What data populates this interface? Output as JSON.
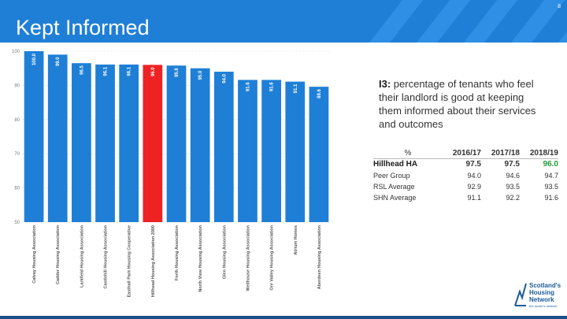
{
  "page": {
    "title": "Kept Informed",
    "page_number": "8"
  },
  "indicator": {
    "code": "I3:",
    "text": "percentage of tenants who feel their landlord is good at keeping them informed about their services and outcomes"
  },
  "chart_data": {
    "type": "bar",
    "categories": [
      "Calvay Housing Association",
      "Cadder Housing Association",
      "Larkfield Housing Association",
      "Castlehill Housing Association",
      "Easthall Park Housing Cooperative",
      "Hillhead Housing Association 2000",
      "Forth Housing Association",
      "North View Housing Association",
      "Glen Housing Association",
      "Wellhouse Housing Association",
      "Ore Valley Housing Association",
      "Atrium Homes",
      "Aberdeen Housing Association"
    ],
    "values": [
      100.0,
      99.0,
      96.5,
      96.1,
      96.1,
      96.0,
      95.8,
      95.0,
      94.0,
      91.6,
      91.6,
      91.1,
      89.6
    ],
    "data_labels": [
      "100.0",
      "99.0",
      "96.5",
      "96.1",
      "96.1",
      "96.0",
      "95.8",
      "95.0",
      "94.0",
      "91.6",
      "91.6",
      "91.1",
      "89.6"
    ],
    "highlight_index": 5,
    "ylim": [
      50,
      100
    ],
    "yticks": [
      "50",
      "60",
      "70",
      "80",
      "90",
      "100"
    ],
    "grid": true,
    "colors": {
      "bar": "#1f7fd6",
      "highlight": "#ee2222"
    }
  },
  "table": {
    "corner": "%",
    "headers": [
      "2016/17",
      "2017/18",
      "2018/19"
    ],
    "rows": [
      {
        "label": "Hillhead HA",
        "values": [
          "97.5",
          "97.5",
          "96.0"
        ]
      },
      {
        "label": "Peer Group",
        "values": [
          "94.0",
          "94.6",
          "94.7"
        ]
      },
      {
        "label": "RSL Average",
        "values": [
          "92.9",
          "93.5",
          "93.5"
        ]
      },
      {
        "label": "SHN Average",
        "values": [
          "91.1",
          "92.2",
          "91.6"
        ]
      }
    ]
  },
  "logo": {
    "line1": "Scotland's",
    "line2": "Housing",
    "line3": "Network",
    "tagline": "the sector's network"
  }
}
